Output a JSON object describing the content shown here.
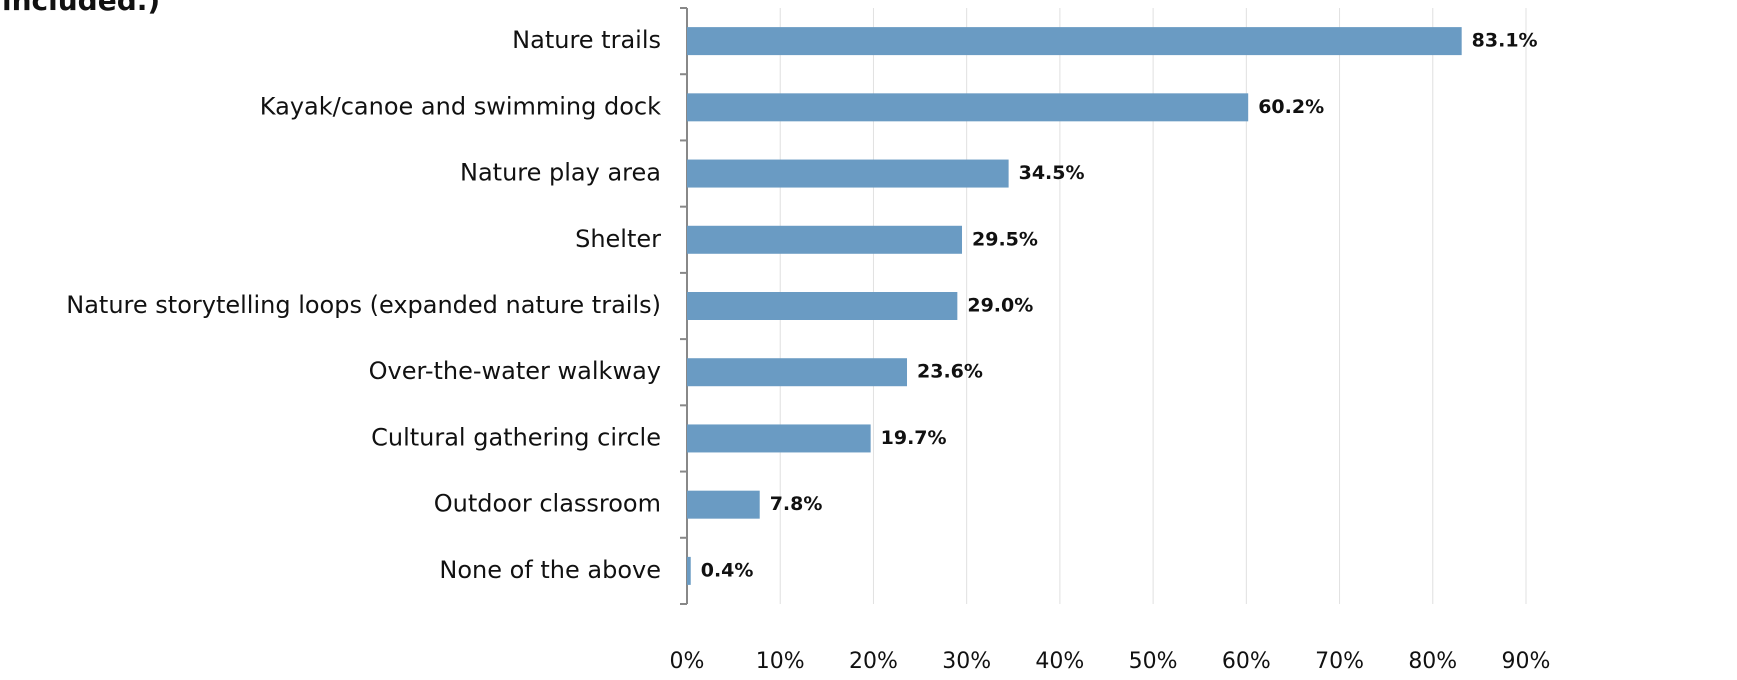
{
  "chart_data": {
    "type": "barh",
    "title": "included.)",
    "categories": [
      "Nature trails",
      "Kayak/canoe and swimming dock",
      "Nature play area",
      "Shelter",
      "Nature storytelling loops (expanded nature trails)",
      "Over-the-water walkway",
      "Cultural gathering circle",
      "Outdoor classroom",
      "None of the above"
    ],
    "values": [
      83.1,
      60.2,
      34.5,
      29.5,
      29.0,
      23.6,
      19.7,
      7.8,
      0.4
    ],
    "value_labels": [
      "83.1%",
      "60.2%",
      "34.5%",
      "29.5%",
      "29.0%",
      "23.6%",
      "19.7%",
      "7.8%",
      "0.4%"
    ],
    "color": "#6a9bc3",
    "xlim": [
      0,
      90
    ],
    "xticks": [
      {
        "value": 0,
        "label": "0%"
      },
      {
        "value": 10,
        "label": "10%"
      },
      {
        "value": 20,
        "label": "20%"
      },
      {
        "value": 30,
        "label": "30%"
      },
      {
        "value": 40,
        "label": "40%"
      },
      {
        "value": 50,
        "label": "50%"
      },
      {
        "value": 60,
        "label": "60%"
      },
      {
        "value": 70,
        "label": "70%"
      },
      {
        "value": 80,
        "label": "80%"
      },
      {
        "value": 90,
        "label": "90%"
      }
    ],
    "grid": true
  }
}
